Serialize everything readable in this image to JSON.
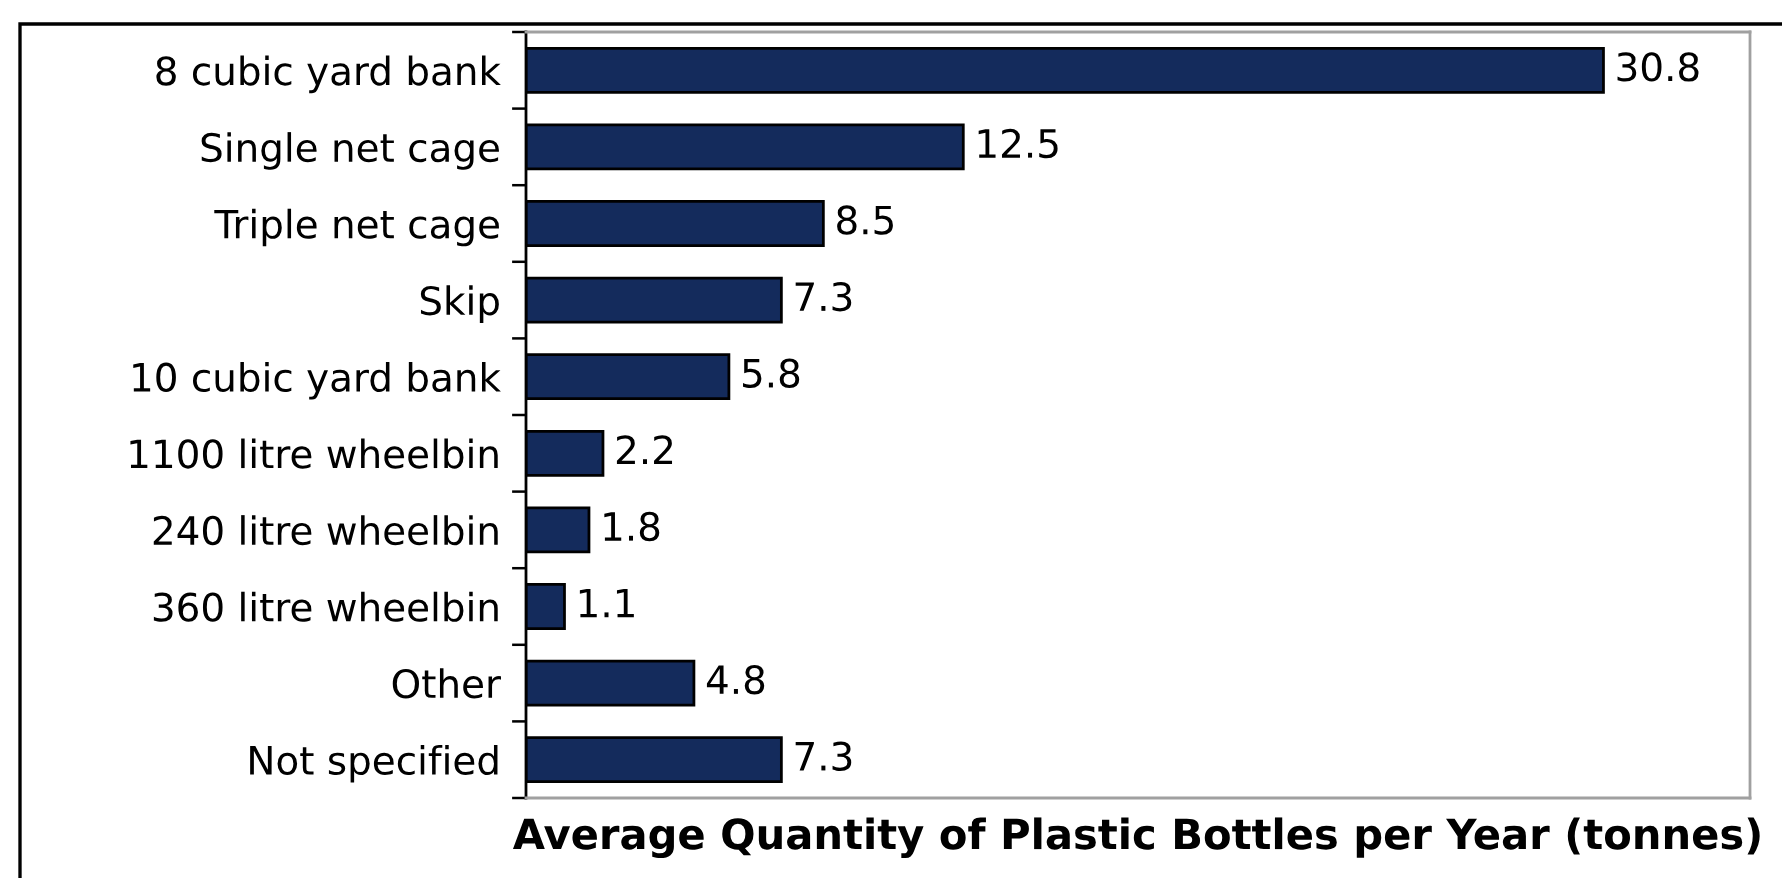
{
  "chart_data": {
    "type": "bar",
    "orientation": "horizontal",
    "xlabel": "Average Quantity of Plastic Bottles per Year (tonnes)",
    "categories": [
      "8 cubic yard bank",
      "Single net cage",
      "Triple net cage",
      "Skip",
      "10 cubic yard bank",
      "1100 litre wheelbin",
      "240 litre wheelbin",
      "360 litre wheelbin",
      "Other",
      "Not specified"
    ],
    "values": [
      30.8,
      12.5,
      8.5,
      7.3,
      5.8,
      2.2,
      1.8,
      1.1,
      4.8,
      7.3
    ],
    "color": "#142b5c",
    "data_labels": true,
    "tick_labels": "y"
  }
}
